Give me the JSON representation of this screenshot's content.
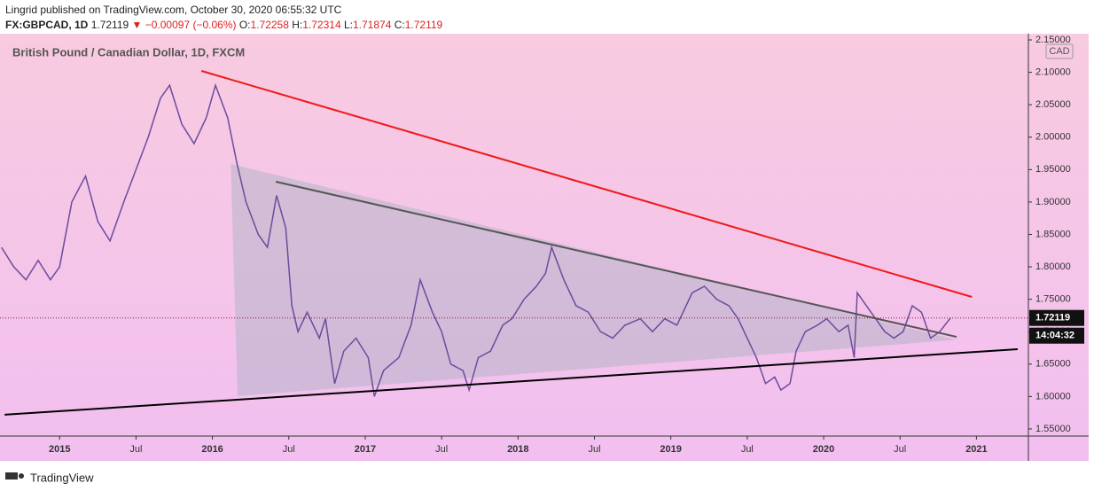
{
  "header": {
    "author_line": "Lingrid published on TradingView.com, October 30, 2020 06:55:32 UTC",
    "symbol": "FX:GBPCAD, 1D",
    "last": "1.72119",
    "change": "▼ −0.00097 (−0.06%)",
    "ohlc": [
      {
        "label": "O:",
        "value": "1.72258"
      },
      {
        "label": "H:",
        "value": "1.72314"
      },
      {
        "label": "L:",
        "value": "1.71874"
      },
      {
        "label": "C:",
        "value": "1.72119"
      }
    ]
  },
  "chart_data": {
    "type": "line",
    "title": "British Pound / Canadian Dollar, 1D, FXCM",
    "currency": "CAD",
    "color": "#6a4c9c",
    "x": [
      2014.62,
      2014.7,
      2014.78,
      2014.86,
      2014.94,
      2015.0,
      2015.08,
      2015.17,
      2015.25,
      2015.33,
      2015.42,
      2015.5,
      2015.58,
      2015.66,
      2015.72,
      2015.8,
      2015.88,
      2015.96,
      2016.02,
      2016.1,
      2016.16,
      2016.22,
      2016.3,
      2016.36,
      2016.42,
      2016.48,
      2016.52,
      2016.56,
      2016.62,
      2016.7,
      2016.74,
      2016.8,
      2016.86,
      2016.94,
      2017.02,
      2017.06,
      2017.12,
      2017.22,
      2017.3,
      2017.36,
      2017.44,
      2017.5,
      2017.56,
      2017.64,
      2017.68,
      2017.74,
      2017.82,
      2017.9,
      2017.96,
      2018.04,
      2018.12,
      2018.18,
      2018.22,
      2018.3,
      2018.38,
      2018.46,
      2018.54,
      2018.62,
      2018.7,
      2018.8,
      2018.88,
      2018.96,
      2019.04,
      2019.14,
      2019.22,
      2019.3,
      2019.38,
      2019.44,
      2019.5,
      2019.56,
      2019.62,
      2019.68,
      2019.72,
      2019.78,
      2019.82,
      2019.88,
      2019.96,
      2020.02,
      2020.1,
      2020.16,
      2020.2,
      2020.22,
      2020.28,
      2020.34,
      2020.4,
      2020.46,
      2020.52,
      2020.58,
      2020.64,
      2020.7,
      2020.76,
      2020.83
    ],
    "values": [
      1.83,
      1.8,
      1.78,
      1.81,
      1.78,
      1.8,
      1.9,
      1.94,
      1.87,
      1.84,
      1.9,
      1.95,
      2.0,
      2.06,
      2.08,
      2.02,
      1.99,
      2.03,
      2.08,
      2.03,
      1.96,
      1.9,
      1.85,
      1.83,
      1.91,
      1.86,
      1.74,
      1.7,
      1.73,
      1.69,
      1.72,
      1.62,
      1.67,
      1.69,
      1.66,
      1.6,
      1.64,
      1.66,
      1.71,
      1.78,
      1.73,
      1.7,
      1.65,
      1.64,
      1.61,
      1.66,
      1.67,
      1.71,
      1.72,
      1.75,
      1.77,
      1.79,
      1.83,
      1.78,
      1.74,
      1.73,
      1.7,
      1.69,
      1.71,
      1.72,
      1.7,
      1.72,
      1.71,
      1.76,
      1.77,
      1.75,
      1.74,
      1.72,
      1.69,
      1.66,
      1.62,
      1.63,
      1.61,
      1.62,
      1.67,
      1.7,
      1.71,
      1.72,
      1.7,
      1.71,
      1.66,
      1.76,
      1.74,
      1.72,
      1.7,
      1.69,
      1.7,
      1.74,
      1.73,
      1.69,
      1.7,
      1.72119
    ],
    "xlim": [
      2014.61,
      2021.34
    ],
    "ylim": [
      1.539,
      2.1596
    ],
    "xticks": [
      2015,
      {
        "value": 2015.5,
        "label": "Jul"
      },
      2016,
      {
        "value": 2016.5,
        "label": "Jul"
      },
      2017,
      {
        "value": 2017.5,
        "label": "Jul"
      },
      2018,
      {
        "value": 2018.5,
        "label": "Jul"
      },
      2019,
      {
        "value": 2019.5,
        "label": "Jul"
      },
      2020,
      {
        "value": 2020.5,
        "label": "Jul"
      },
      2021
    ],
    "yticks": [
      {
        "value": 1.55,
        "label": "1.55000"
      },
      {
        "value": 1.6,
        "label": "1.60000"
      },
      {
        "value": 1.65,
        "label": "1.65000"
      },
      {
        "value": 1.7,
        "label": "1.70000"
      },
      {
        "value": 1.75,
        "label": "1.75000"
      },
      {
        "value": 1.8,
        "label": "1.80000"
      },
      {
        "value": 1.85,
        "label": "1.85000"
      },
      {
        "value": 1.9,
        "label": "1.90000"
      },
      {
        "value": 1.95,
        "label": "1.95000"
      },
      {
        "value": 2.0,
        "label": "2.00000"
      },
      {
        "value": 2.05,
        "label": "2.05000"
      },
      {
        "value": 2.1,
        "label": "2.10000"
      },
      {
        "value": 2.15,
        "label": "2.15000"
      }
    ],
    "last_price": 1.72119,
    "countdown": "14:04:32",
    "shaded_area": {
      "color": "#b4b4c8",
      "points": [
        [
          2016.12,
          1.9587
        ],
        [
          2016.165,
          1.6006
        ],
        [
          2020.87,
          1.6875
        ]
      ]
    },
    "trendlines": [
      {
        "color": "#f01818",
        "points": [
          [
            2015.928,
            2.1022
          ],
          [
            2020.97,
            1.7536
          ]
        ]
      },
      {
        "color": "#000000",
        "points": [
          [
            2014.64,
            1.5719
          ],
          [
            2021.27,
            1.673
          ]
        ]
      },
      {
        "color": "#555555",
        "points": [
          [
            2016.415,
            1.9313
          ],
          [
            2020.87,
            1.692
          ]
        ]
      }
    ]
  },
  "footer": {
    "brand": "TradingView"
  }
}
